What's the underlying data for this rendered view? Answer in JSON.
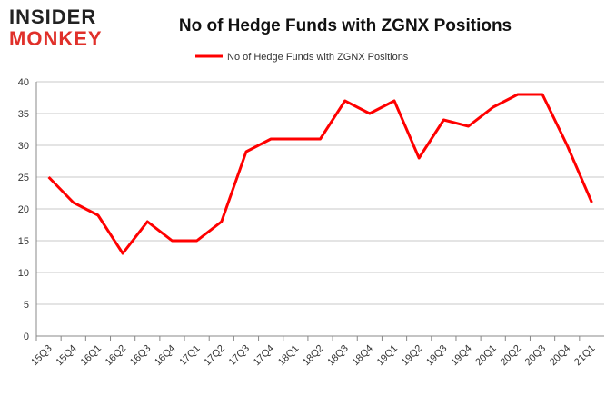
{
  "logo": {
    "line1": "INSIDER",
    "line2": "MONKEY"
  },
  "chart_data": {
    "type": "line",
    "title": "No of Hedge Funds with ZGNX Positions",
    "categories": [
      "15Q3",
      "15Q4",
      "16Q1",
      "16Q2",
      "16Q3",
      "16Q4",
      "17Q1",
      "17Q2",
      "17Q3",
      "17Q4",
      "18Q1",
      "18Q2",
      "18Q3",
      "18Q4",
      "19Q1",
      "19Q2",
      "19Q3",
      "19Q4",
      "20Q1",
      "20Q2",
      "20Q3",
      "20Q4",
      "21Q1"
    ],
    "series": [
      {
        "name": "No of Hedge Funds with ZGNX Positions",
        "color": "#ff0000",
        "values": [
          25,
          21,
          19,
          13,
          18,
          15,
          15,
          18,
          29,
          31,
          31,
          31,
          37,
          35,
          37,
          28,
          34,
          33,
          36,
          38,
          38,
          30,
          21
        ]
      }
    ],
    "ylim": [
      0,
      40
    ],
    "yticks": [
      0,
      5,
      10,
      15,
      20,
      25,
      30,
      35,
      40
    ],
    "grid": true,
    "legend": "top"
  }
}
